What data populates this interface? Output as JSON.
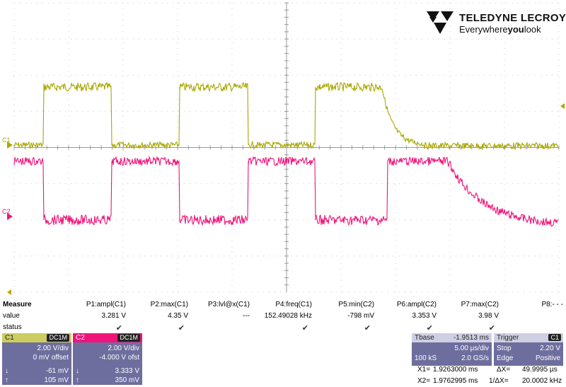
{
  "brand": {
    "name": "TELEDYNE LECROY",
    "tagline_pre": "Everywhere",
    "tagline_bold": "you",
    "tagline_post": "look"
  },
  "colors": {
    "c1": "#a8a800",
    "c2": "#f0147a",
    "grid": "#c8c8c8"
  },
  "trace_labels": {
    "c1": "C1",
    "c2": "C2"
  },
  "measure": {
    "title": "Measure",
    "row_labels": [
      "value",
      "status"
    ],
    "params": [
      {
        "name": "P1:ampl(C1)",
        "value": "3.281 V",
        "status": "✔"
      },
      {
        "name": "P2:max(C1)",
        "value": "4.35 V",
        "status": "✔"
      },
      {
        "name": "P3:lvl@x(C1)",
        "value": "---",
        "status": ""
      },
      {
        "name": "P4:freq(C1)",
        "value": "152.49028 kHz",
        "status": "✔"
      },
      {
        "name": "P5:min(C2)",
        "value": "-798 mV",
        "status": "✔"
      },
      {
        "name": "P6:ampl(C2)",
        "value": "3.353 V",
        "status": "✔"
      },
      {
        "name": "P7:max(C2)",
        "value": "3.98 V",
        "status": "✔"
      },
      {
        "name": "P8:- - -",
        "value": "",
        "status": ""
      }
    ]
  },
  "channels": [
    {
      "name": "C1",
      "coupling": "DC1M",
      "vdiv": "2.00 V/div",
      "offset": "0 mV offset",
      "low": "-61 mV",
      "high": "105 mV",
      "low_sym": "↓",
      "high_sym": "↑"
    },
    {
      "name": "C2",
      "coupling": "DC1M",
      "vdiv": "2.00 V/div",
      "offset": "-4.000 V ofst",
      "low": "3.333 V",
      "high": "350 mV",
      "low_sym": "↓",
      "high_sym": "↑"
    }
  ],
  "timebase": {
    "label": "Tbase",
    "delay": "-1.9513 ms",
    "tdiv": "5.00 µs/div",
    "samples": "100 kS",
    "rate": "2.0 GS/s"
  },
  "trigger": {
    "label": "Trigger",
    "channel": "C1",
    "mode": "Stop",
    "level": "2.20 V",
    "type": "Edge",
    "slope": "Positive"
  },
  "cursors": {
    "x1_label": "X1=",
    "x1": "1.9263000 ms",
    "dx_label": "ΔX=",
    "dx": "49.9995 µs",
    "x2_label": "X2=",
    "x2": "1.9762995 ms",
    "inv_label": "1/ΔX=",
    "inv": "20.0002 kHz"
  }
}
